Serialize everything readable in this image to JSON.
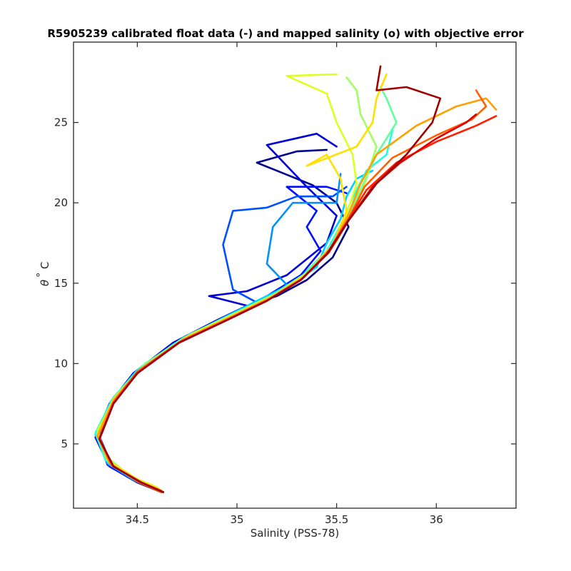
{
  "chart_data": {
    "type": "line",
    "title": "R5905239 calibrated float data (-) and mapped salinity (o) with objective error",
    "xlabel": "Salinity (PSS-78)",
    "ylabel": {
      "symbol": "θ",
      "degree": "°",
      "unit": "C"
    },
    "xlim": [
      34.18,
      36.4
    ],
    "ylim": [
      1.0,
      30.0
    ],
    "x_ticks": [
      34.5,
      35,
      35.5,
      36
    ],
    "x_tick_labels": [
      "34.5",
      "35",
      "35.5",
      "36"
    ],
    "y_ticks": [
      5,
      10,
      15,
      20,
      25
    ],
    "y_tick_labels": [
      "5",
      "10",
      "15",
      "20",
      "25"
    ],
    "grid": false,
    "colormap": "jet",
    "colors": [
      "#00008f",
      "#0000d5",
      "#0010ff",
      "#0050ff",
      "#0090ff",
      "#00d0ff",
      "#20ffdf",
      "#60ff9f",
      "#a0ff60",
      "#dfff20",
      "#ffe000",
      "#ffa000",
      "#ff6000",
      "#ff2000",
      "#df0000",
      "#9f0000"
    ],
    "series": [
      {
        "values": [
          [
            34.63,
            2.0
          ],
          [
            34.52,
            2.6
          ],
          [
            34.38,
            3.6
          ],
          [
            34.3,
            5.4
          ],
          [
            34.38,
            7.6
          ],
          [
            34.5,
            9.5
          ],
          [
            34.7,
            11.4
          ],
          [
            34.92,
            12.8
          ],
          [
            35.08,
            13.7
          ],
          [
            35.2,
            14.2
          ],
          [
            35.35,
            15.2
          ],
          [
            35.48,
            16.6
          ],
          [
            35.56,
            18.5
          ],
          [
            35.5,
            20.0
          ],
          [
            35.38,
            21.1
          ],
          [
            35.1,
            22.5
          ],
          [
            35.3,
            23.2
          ],
          [
            35.45,
            23.3
          ]
        ]
      },
      {
        "values": [
          [
            34.62,
            2.0
          ],
          [
            34.5,
            2.6
          ],
          [
            34.36,
            3.6
          ],
          [
            34.29,
            5.4
          ],
          [
            34.36,
            7.5
          ],
          [
            34.48,
            9.4
          ],
          [
            34.68,
            11.3
          ],
          [
            34.9,
            12.7
          ],
          [
            35.05,
            13.6
          ],
          [
            34.86,
            14.2
          ],
          [
            35.05,
            14.5
          ],
          [
            35.25,
            15.5
          ],
          [
            35.45,
            17.5
          ],
          [
            35.5,
            19.2
          ],
          [
            35.35,
            21.0
          ],
          [
            35.15,
            23.6
          ],
          [
            35.4,
            24.3
          ],
          [
            35.5,
            23.5
          ]
        ]
      },
      {
        "values": [
          [
            34.6,
            2.1
          ],
          [
            34.49,
            2.7
          ],
          [
            34.35,
            3.7
          ],
          [
            34.3,
            5.5
          ],
          [
            34.37,
            7.6
          ],
          [
            34.5,
            9.5
          ],
          [
            34.72,
            11.4
          ],
          [
            34.95,
            12.8
          ],
          [
            35.15,
            14.2
          ],
          [
            35.32,
            15.5
          ],
          [
            35.42,
            17.0
          ],
          [
            35.35,
            18.5
          ],
          [
            35.4,
            19.5
          ],
          [
            35.25,
            21.0
          ],
          [
            35.45,
            21.0
          ],
          [
            35.55,
            20.6
          ]
        ]
      },
      {
        "values": [
          [
            34.61,
            2.1
          ],
          [
            34.5,
            2.7
          ],
          [
            34.37,
            3.7
          ],
          [
            34.31,
            5.5
          ],
          [
            34.38,
            7.6
          ],
          [
            34.5,
            9.5
          ],
          [
            34.7,
            11.3
          ],
          [
            34.9,
            12.6
          ],
          [
            35.1,
            13.8
          ],
          [
            34.98,
            14.6
          ],
          [
            34.93,
            17.4
          ],
          [
            34.98,
            19.5
          ],
          [
            35.15,
            19.7
          ],
          [
            35.3,
            20.4
          ],
          [
            35.48,
            20.4
          ],
          [
            35.55,
            21.0
          ]
        ]
      },
      {
        "values": [
          [
            34.6,
            2.1
          ],
          [
            34.49,
            2.7
          ],
          [
            34.36,
            3.7
          ],
          [
            34.3,
            5.4
          ],
          [
            34.37,
            7.6
          ],
          [
            34.49,
            9.4
          ],
          [
            34.68,
            11.2
          ],
          [
            34.9,
            12.5
          ],
          [
            35.15,
            14.0
          ],
          [
            35.25,
            14.9
          ],
          [
            35.15,
            16.2
          ],
          [
            35.18,
            18.5
          ],
          [
            35.28,
            20.0
          ],
          [
            35.4,
            20.0
          ],
          [
            35.5,
            20.0
          ],
          [
            35.52,
            21.8
          ]
        ]
      },
      {
        "values": [
          [
            34.6,
            2.2
          ],
          [
            34.48,
            2.8
          ],
          [
            34.35,
            3.8
          ],
          [
            34.29,
            5.6
          ],
          [
            34.37,
            7.7
          ],
          [
            34.5,
            9.6
          ],
          [
            34.72,
            11.5
          ],
          [
            34.94,
            12.9
          ],
          [
            35.1,
            13.9
          ],
          [
            35.28,
            15.0
          ],
          [
            35.4,
            16.0
          ],
          [
            35.45,
            17.5
          ],
          [
            35.52,
            19.0
          ],
          [
            35.55,
            20.4
          ],
          [
            35.6,
            21.5
          ],
          [
            35.68,
            22.0
          ]
        ]
      },
      {
        "values": [
          [
            34.59,
            2.3
          ],
          [
            34.47,
            2.9
          ],
          [
            34.34,
            4.0
          ],
          [
            34.29,
            5.7
          ],
          [
            34.38,
            7.9
          ],
          [
            34.52,
            9.8
          ],
          [
            34.73,
            11.6
          ],
          [
            34.97,
            13.0
          ],
          [
            35.17,
            14.2
          ],
          [
            35.33,
            15.5
          ],
          [
            35.45,
            17.0
          ],
          [
            35.52,
            18.6
          ],
          [
            35.58,
            20.3
          ],
          [
            35.65,
            22.0
          ],
          [
            35.75,
            23.0
          ],
          [
            35.78,
            24.5
          ]
        ]
      },
      {
        "values": [
          [
            34.58,
            2.4
          ],
          [
            34.46,
            3.0
          ],
          [
            34.34,
            4.2
          ],
          [
            34.3,
            5.8
          ],
          [
            34.39,
            8.0
          ],
          [
            34.54,
            10.0
          ],
          [
            34.76,
            11.8
          ],
          [
            35.0,
            13.2
          ],
          [
            35.2,
            14.4
          ],
          [
            35.36,
            15.7
          ],
          [
            35.47,
            17.2
          ],
          [
            35.55,
            19.0
          ],
          [
            35.62,
            20.8
          ],
          [
            35.7,
            23.0
          ],
          [
            35.8,
            25.0
          ],
          [
            35.75,
            26.5
          ],
          [
            35.72,
            27.2
          ]
        ]
      },
      {
        "values": [
          [
            34.58,
            2.4
          ],
          [
            34.46,
            3.0
          ],
          [
            34.34,
            4.3
          ],
          [
            34.3,
            5.9
          ],
          [
            34.4,
            8.0
          ],
          [
            34.55,
            10.0
          ],
          [
            34.78,
            11.9
          ],
          [
            35.02,
            13.3
          ],
          [
            35.22,
            14.5
          ],
          [
            35.38,
            15.9
          ],
          [
            35.5,
            17.6
          ],
          [
            35.58,
            19.5
          ],
          [
            35.65,
            21.5
          ],
          [
            35.7,
            23.5
          ],
          [
            35.62,
            25.5
          ],
          [
            35.6,
            27.0
          ],
          [
            35.55,
            27.8
          ]
        ]
      },
      {
        "values": [
          [
            34.6,
            2.3
          ],
          [
            34.48,
            2.9
          ],
          [
            34.35,
            4.0
          ],
          [
            34.3,
            5.7
          ],
          [
            34.39,
            7.9
          ],
          [
            34.53,
            9.8
          ],
          [
            34.76,
            11.7
          ],
          [
            35.0,
            13.1
          ],
          [
            35.2,
            14.3
          ],
          [
            35.36,
            15.7
          ],
          [
            35.48,
            17.4
          ],
          [
            35.55,
            19.3
          ],
          [
            35.6,
            21.2
          ],
          [
            35.58,
            23.0
          ],
          [
            35.5,
            25.0
          ],
          [
            35.45,
            26.8
          ],
          [
            35.25,
            27.9
          ],
          [
            35.5,
            28.0
          ]
        ]
      },
      {
        "values": [
          [
            34.61,
            2.2
          ],
          [
            34.5,
            2.8
          ],
          [
            34.36,
            3.9
          ],
          [
            34.3,
            5.6
          ],
          [
            34.38,
            7.8
          ],
          [
            34.52,
            9.7
          ],
          [
            34.74,
            11.6
          ],
          [
            34.98,
            13.0
          ],
          [
            35.18,
            14.2
          ],
          [
            35.35,
            15.6
          ],
          [
            35.48,
            17.4
          ],
          [
            35.55,
            19.5
          ],
          [
            35.52,
            21.5
          ],
          [
            35.45,
            23.0
          ],
          [
            35.35,
            22.3
          ],
          [
            35.6,
            23.5
          ],
          [
            35.68,
            25.0
          ],
          [
            35.7,
            26.5
          ],
          [
            35.75,
            28.0
          ]
        ]
      },
      {
        "values": [
          [
            34.62,
            2.1
          ],
          [
            34.5,
            2.7
          ],
          [
            34.36,
            3.8
          ],
          [
            34.3,
            5.5
          ],
          [
            34.38,
            7.7
          ],
          [
            34.51,
            9.6
          ],
          [
            34.73,
            11.5
          ],
          [
            34.97,
            12.9
          ],
          [
            35.17,
            14.1
          ],
          [
            35.34,
            15.4
          ],
          [
            35.47,
            17.2
          ],
          [
            35.56,
            19.3
          ],
          [
            35.62,
            21.2
          ],
          [
            35.7,
            23.0
          ],
          [
            35.9,
            24.8
          ],
          [
            36.1,
            26.0
          ],
          [
            36.25,
            26.5
          ],
          [
            36.3,
            25.8
          ]
        ]
      },
      {
        "values": [
          [
            34.62,
            2.0
          ],
          [
            34.51,
            2.6
          ],
          [
            34.37,
            3.7
          ],
          [
            34.31,
            5.4
          ],
          [
            34.38,
            7.6
          ],
          [
            34.5,
            9.5
          ],
          [
            34.72,
            11.4
          ],
          [
            34.96,
            12.8
          ],
          [
            35.16,
            14.0
          ],
          [
            35.33,
            15.3
          ],
          [
            35.46,
            17.0
          ],
          [
            35.56,
            19.0
          ],
          [
            35.64,
            21.0
          ],
          [
            35.78,
            22.8
          ],
          [
            36.0,
            24.2
          ],
          [
            36.18,
            25.2
          ],
          [
            36.25,
            26.0
          ],
          [
            36.2,
            27.0
          ]
        ]
      },
      {
        "values": [
          [
            34.63,
            2.0
          ],
          [
            34.52,
            2.6
          ],
          [
            34.38,
            3.6
          ],
          [
            34.31,
            5.3
          ],
          [
            34.38,
            7.5
          ],
          [
            34.5,
            9.4
          ],
          [
            34.71,
            11.3
          ],
          [
            34.95,
            12.7
          ],
          [
            35.15,
            13.9
          ],
          [
            35.32,
            15.2
          ],
          [
            35.45,
            16.8
          ],
          [
            35.55,
            18.8
          ],
          [
            35.65,
            20.8
          ],
          [
            35.8,
            22.5
          ],
          [
            36.0,
            23.8
          ],
          [
            36.2,
            24.8
          ],
          [
            36.3,
            25.4
          ]
        ]
      },
      {
        "values": [
          [
            34.63,
            2.0
          ],
          [
            34.52,
            2.6
          ],
          [
            34.38,
            3.6
          ],
          [
            34.31,
            5.3
          ],
          [
            34.38,
            7.5
          ],
          [
            34.5,
            9.4
          ],
          [
            34.71,
            11.3
          ],
          [
            34.95,
            12.7
          ],
          [
            35.15,
            13.9
          ],
          [
            35.32,
            15.2
          ],
          [
            35.46,
            16.9
          ],
          [
            35.56,
            18.9
          ],
          [
            35.68,
            21.0
          ],
          [
            35.82,
            22.5
          ],
          [
            36.0,
            24.0
          ],
          [
            36.15,
            25.0
          ],
          [
            36.2,
            25.5
          ]
        ]
      },
      {
        "values": [
          [
            34.63,
            2.0
          ],
          [
            34.52,
            2.6
          ],
          [
            34.38,
            3.6
          ],
          [
            34.31,
            5.3
          ],
          [
            34.38,
            7.5
          ],
          [
            34.5,
            9.4
          ],
          [
            34.71,
            11.3
          ],
          [
            34.95,
            12.7
          ],
          [
            35.15,
            13.9
          ],
          [
            35.32,
            15.2
          ],
          [
            35.45,
            16.8
          ],
          [
            35.56,
            18.9
          ],
          [
            35.7,
            21.2
          ],
          [
            35.85,
            23.0
          ],
          [
            35.98,
            25.0
          ],
          [
            36.02,
            26.5
          ],
          [
            35.85,
            27.2
          ],
          [
            35.7,
            27.0
          ],
          [
            35.72,
            28.5
          ]
        ]
      }
    ]
  }
}
